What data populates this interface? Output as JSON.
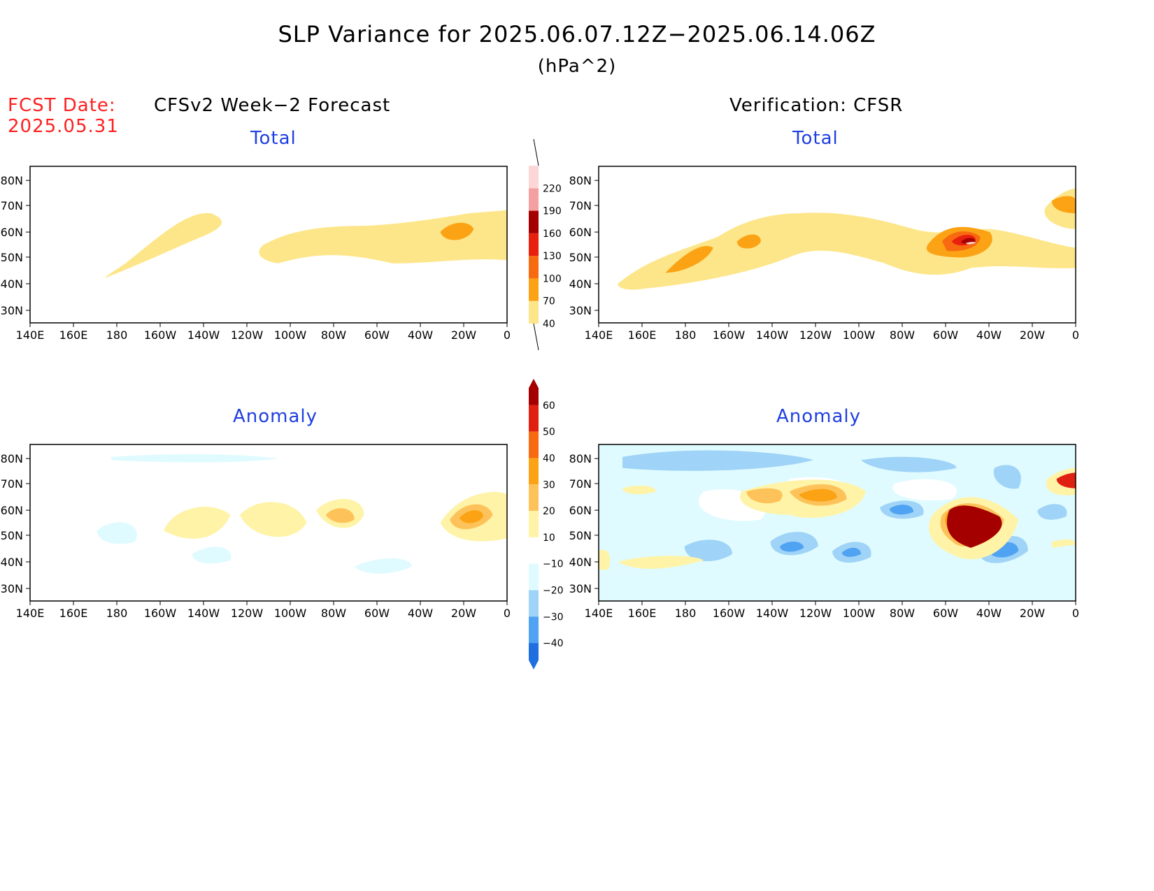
{
  "title": "SLP Variance for 2025.06.07.12Z−2025.06.14.06Z",
  "units": "(hPa^2)",
  "fcst_label": "FCST Date:",
  "fcst_date": "2025.05.31",
  "left_column_title": "CFSv2 Week−2 Forecast",
  "right_column_title": "Verification: CFSR",
  "panels": [
    {
      "id": "forecast-total",
      "title": "Total"
    },
    {
      "id": "verification-total",
      "title": "Total"
    },
    {
      "id": "forecast-anomaly",
      "title": "Anomaly"
    },
    {
      "id": "verification-anomaly",
      "title": "Anomaly"
    }
  ],
  "lat_labels": [
    "80N",
    "70N",
    "60N",
    "50N",
    "40N",
    "30N"
  ],
  "lon_labels": [
    "140E",
    "160E",
    "180",
    "160W",
    "140W",
    "120W",
    "100W",
    "80W",
    "60W",
    "40W",
    "20W",
    "0"
  ],
  "total_colorbar": {
    "levels": [
      "40",
      "70",
      "100",
      "130",
      "160",
      "190",
      "220"
    ],
    "colors": [
      "#fde68a",
      "#fba314",
      "#f86a10",
      "#e8210e",
      "#a50000",
      "#f4a0a0",
      "#fbd7d7"
    ]
  },
  "anomaly_colorbar": {
    "levels": [
      "60",
      "50",
      "40",
      "30",
      "20",
      "10",
      "−10",
      "−20",
      "−30",
      "−40"
    ],
    "colors": [
      "#a50000",
      "#e02010",
      "#f86a10",
      "#fba314",
      "#fdc35a",
      "#fff3a8",
      "#ffffff",
      "#dffbff",
      "#9fd3f7",
      "#4fa3f2",
      "#1f6fe0"
    ]
  },
  "colors": {
    "title_blue": "#1f3fe0",
    "fcst_red": "#ff2020"
  }
}
